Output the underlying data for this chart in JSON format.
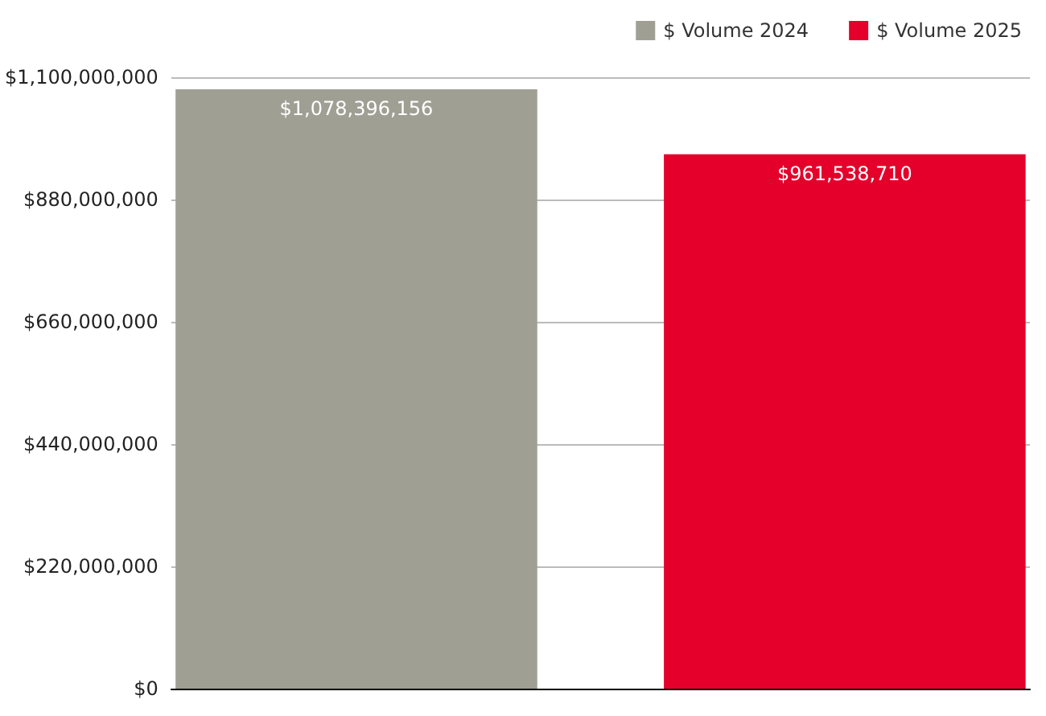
{
  "chart_data": {
    "type": "bar",
    "categories": [
      null
    ],
    "series": [
      {
        "name": "$ Volume 2024",
        "color": "#a09f94",
        "values": [
          1078396156
        ],
        "value_labels": [
          "$1,078,396,156"
        ]
      },
      {
        "name": "$ Volume 2025",
        "color": "#e4002b",
        "values": [
          961538710
        ],
        "value_labels": [
          "$961,538,710"
        ]
      }
    ],
    "ylim": [
      0,
      1100000000
    ],
    "yticks": [
      {
        "value": 0,
        "label": "$0"
      },
      {
        "value": 220000000,
        "label": "$220,000,000"
      },
      {
        "value": 440000000,
        "label": "$440,000,000"
      },
      {
        "value": 660000000,
        "label": "$660,000,000"
      },
      {
        "value": 880000000,
        "label": "$880,000,000"
      },
      {
        "value": 1100000000,
        "label": "$1,100,000,000"
      }
    ],
    "grid": "y",
    "legend": "top right"
  }
}
